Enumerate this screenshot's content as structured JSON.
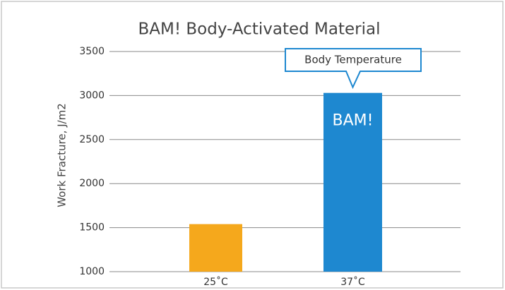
{
  "chart_data": {
    "type": "bar",
    "title": "BAM! Body-Activated Material",
    "y_label": "Work Fracture, J/m2",
    "categories": [
      "25˚C",
      "37˚C"
    ],
    "values": [
      1540,
      3030
    ],
    "colors": [
      "#f5a81c",
      "#1e88d0"
    ],
    "ylim": [
      1000,
      3500
    ],
    "yticks": [
      1000,
      1500,
      2000,
      2500,
      3000,
      3500
    ],
    "grid": true,
    "callout": "Body Temperature",
    "bar_label": "BAM!"
  }
}
